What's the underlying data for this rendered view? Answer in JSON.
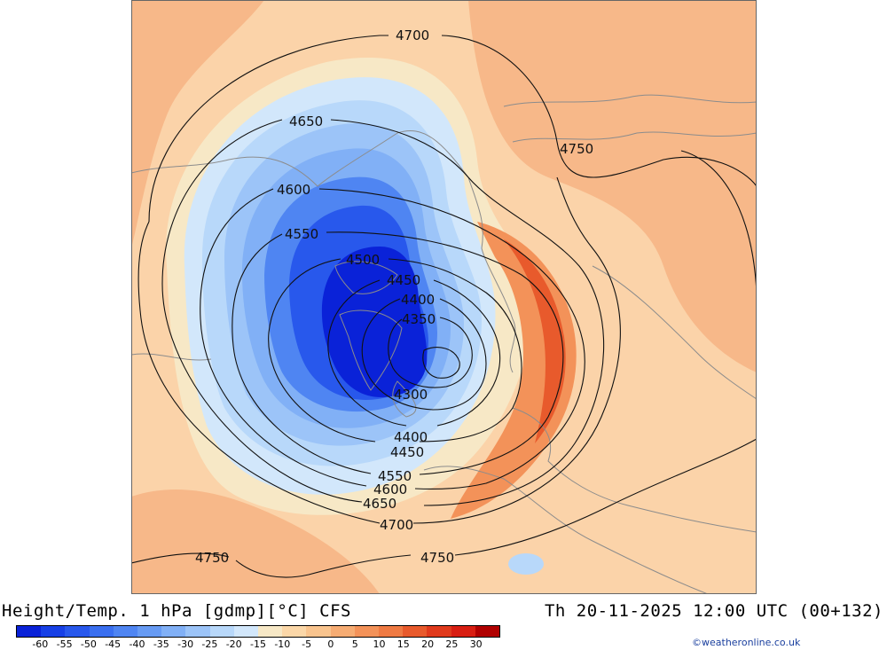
{
  "header": {
    "title": "Height/Temp. 1 hPa [gdmp][°C] CFS",
    "valid_time": "Th 20-11-2025 12:00 UTC (00+132)"
  },
  "contour_labels": [
    "4700",
    "4650",
    "4600",
    "4550",
    "4500",
    "4450",
    "4400",
    "4350",
    "4300",
    "4750"
  ],
  "legend": {
    "tick_labels": [
      "-60",
      "-55",
      "-50",
      "-45",
      "-40",
      "-35",
      "-30",
      "-25",
      "-20",
      "-15",
      "-10",
      "-5",
      "0",
      "5",
      "10",
      "15",
      "20",
      "25",
      "30"
    ],
    "colors": [
      "#0a22d8",
      "#1740e6",
      "#2858ec",
      "#3a6ff0",
      "#4f85f2",
      "#679bf4",
      "#81b0f6",
      "#9cc4f8",
      "#b8d8fa",
      "#d2e7fb",
      "#f7e8c6",
      "#fbd7a8",
      "#f9c48e",
      "#f6ac73",
      "#f39259",
      "#ef7a43",
      "#e85a2c",
      "#e03a1c",
      "#d81e12",
      "#b00000"
    ]
  },
  "credit": "©weatheronline.co.uk",
  "colors": {
    "background": "#fbd3a9",
    "warm_anomaly": "#ef7a43",
    "cold_core": "#0a22d8",
    "coastline": "#8c8c8c",
    "contour": "#111111"
  }
}
